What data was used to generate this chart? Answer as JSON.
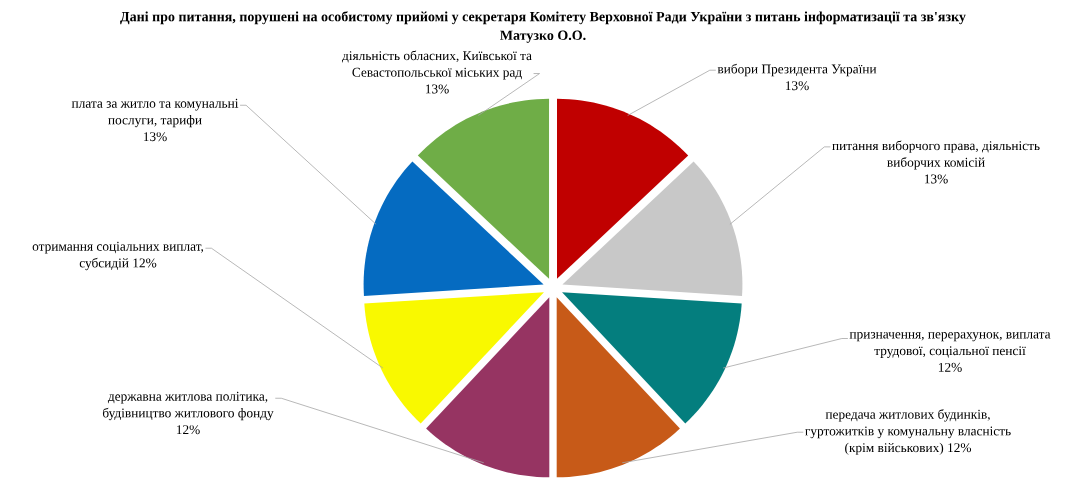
{
  "chart_data": {
    "type": "pie",
    "title": "Дані про питання, порушені на особистому прийомі у секретаря Комітету Верховної Ради України з питань інформатизації та зв'язку Матузко О.О.",
    "categories": [
      "вибори Президента України",
      "питання виборчого права, діяльність виборчих комісій",
      "призначення, перерахунок, виплата трудової, соціальної пенсії",
      "передача житлових будинків, гуртожитків у комунальну власність (крім військових)",
      "державна житлова політика, будівництво житлового фонду",
      "отримання соціальних виплат, субсидій",
      "плата за житло та комунальні послуги, тарифи",
      "діяльність обласних, Київської та Севастопольської міських рад"
    ],
    "values": [
      13,
      13,
      12,
      12,
      12,
      12,
      13,
      13
    ],
    "value_labels": [
      "13%",
      "13%",
      "12%",
      "12%",
      "12%",
      "12%",
      "13%",
      "13%"
    ],
    "colors": [
      "#c00000",
      "#c8c8c8",
      "#047e7e",
      "#c75a18",
      "#963462",
      "#f9f900",
      "#056bc1",
      "#6fad47"
    ]
  }
}
